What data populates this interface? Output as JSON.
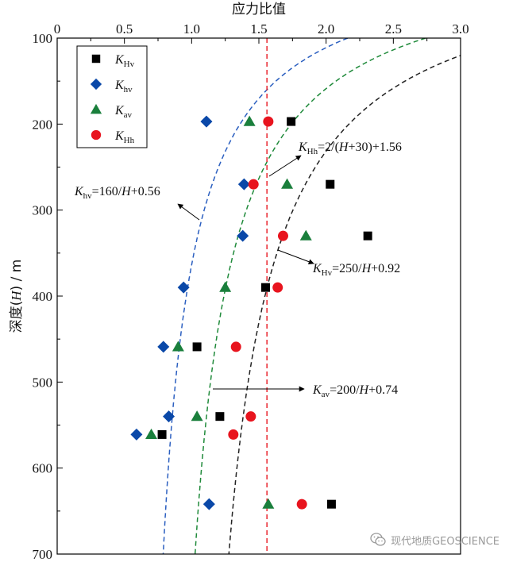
{
  "chart_data": {
    "type": "scatter",
    "title": "",
    "xlabel": "应力比值",
    "ylabel": "深度(H) / m",
    "xlim": [
      0,
      3.0
    ],
    "ylim": [
      100,
      700
    ],
    "x_axis_position": "top",
    "y_inverted": true,
    "x_ticks": [
      "0",
      "0.5",
      "1.0",
      "1.5",
      "2.0",
      "2.5",
      "3.0"
    ],
    "y_ticks": [
      "100",
      "200",
      "300",
      "400",
      "500",
      "600",
      "700"
    ],
    "legend_position": "top-left",
    "series": [
      {
        "name": "K_Hv",
        "base": "K",
        "subscript": "Hv",
        "marker": "square",
        "color": "#000000",
        "points": [
          [
            1.74,
            197
          ],
          [
            2.03,
            270
          ],
          [
            2.31,
            330
          ],
          [
            1.55,
            390
          ],
          [
            1.04,
            459
          ],
          [
            1.21,
            540
          ],
          [
            0.78,
            561
          ],
          [
            2.04,
            642
          ]
        ]
      },
      {
        "name": "K_hv",
        "base": "K",
        "subscript": "hv",
        "marker": "diamond",
        "color": "#0a48a8",
        "points": [
          [
            1.11,
            197
          ],
          [
            1.39,
            270
          ],
          [
            1.38,
            330
          ],
          [
            0.94,
            390
          ],
          [
            0.79,
            459
          ],
          [
            0.83,
            540
          ],
          [
            0.59,
            561
          ],
          [
            1.13,
            642
          ]
        ]
      },
      {
        "name": "K_av",
        "base": "K",
        "subscript": "av",
        "marker": "triangle",
        "color": "#1a7f3c",
        "points": [
          [
            1.43,
            197
          ],
          [
            1.71,
            270
          ],
          [
            1.85,
            330
          ],
          [
            1.25,
            390
          ],
          [
            0.9,
            459
          ],
          [
            1.04,
            540
          ],
          [
            0.7,
            561
          ],
          [
            1.57,
            642
          ]
        ]
      },
      {
        "name": "K_Hh",
        "base": "K",
        "subscript": "Hh",
        "marker": "circle",
        "color": "#e8141e",
        "points": [
          [
            1.57,
            197
          ],
          [
            1.46,
            270
          ],
          [
            1.68,
            330
          ],
          [
            1.64,
            390
          ],
          [
            1.33,
            459
          ],
          [
            1.44,
            540
          ],
          [
            1.31,
            561
          ],
          [
            1.82,
            642
          ]
        ]
      }
    ],
    "fit_curves": [
      {
        "series": "K_hv",
        "a": 160,
        "c": 0.56,
        "d": 0,
        "color": "#2b5fc0"
      },
      {
        "series": "K_av",
        "a": 200,
        "c": 0.74,
        "d": 0,
        "color": "#1f8a3a"
      },
      {
        "series": "K_Hv",
        "a": 250,
        "c": 0.92,
        "d": 0,
        "color": "#222222"
      }
    ],
    "vertical_line": {
      "series": "K_Hh",
      "x": 1.56,
      "color": "#e8141e"
    },
    "annotations": [
      {
        "sym": "K",
        "sub": "hv",
        "rest": "=160/H+0.56"
      },
      {
        "sym": "K",
        "sub": "Hh",
        "rest": "=2/(H+30)+1.56"
      },
      {
        "sym": "K",
        "sub": "Hv",
        "rest": "=250/H+0.92"
      },
      {
        "sym": "K",
        "sub": "av",
        "rest": "=200/H+0.74"
      }
    ]
  },
  "watermark": {
    "text": "现代地质GEOSCIENCE",
    "icon": "wechat-icon"
  }
}
